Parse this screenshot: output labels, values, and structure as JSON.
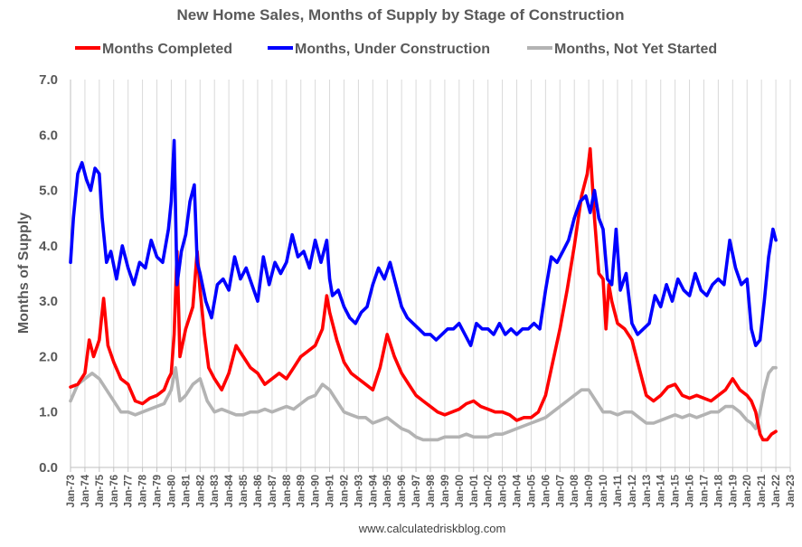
{
  "chart_data": {
    "type": "line",
    "title": "New Home Sales, Months of Supply by Stage of Construction",
    "ylabel": "Months of Supply",
    "xlabel": "",
    "ylim": [
      0,
      7
    ],
    "xlim": [
      1973,
      2023
    ],
    "grid": {
      "vertical": true,
      "horizontal": false
    },
    "legend_position": "top",
    "y_ticks": [
      "0.0",
      "1.0",
      "2.0",
      "3.0",
      "4.0",
      "5.0",
      "6.0",
      "7.0"
    ],
    "x_ticks": [
      "Jan-73",
      "Jan-74",
      "Jan-75",
      "Jan-76",
      "Jan-77",
      "Jan-78",
      "Jan-79",
      "Jan-80",
      "Jan-81",
      "Jan-82",
      "Jan-83",
      "Jan-84",
      "Jan-85",
      "Jan-86",
      "Jan-87",
      "Jan-88",
      "Jan-89",
      "Jan-90",
      "Jan-91",
      "Jan-92",
      "Jan-93",
      "Jan-94",
      "Jan-95",
      "Jan-96",
      "Jan-97",
      "Jan-98",
      "Jan-99",
      "Jan-00",
      "Jan-01",
      "Jan-02",
      "Jan-03",
      "Jan-04",
      "Jan-05",
      "Jan-06",
      "Jan-07",
      "Jan-08",
      "Jan-09",
      "Jan-10",
      "Jan-11",
      "Jan-12",
      "Jan-13",
      "Jan-14",
      "Jan-15",
      "Jan-16",
      "Jan-17",
      "Jan-18",
      "Jan-19",
      "Jan-20",
      "Jan-21",
      "Jan-22",
      "Jan-23"
    ],
    "series": [
      {
        "name": "Months Completed",
        "color": "#ff0000",
        "x": [
          1973.0,
          1973.5,
          1974.0,
          1974.3,
          1974.6,
          1975.0,
          1975.3,
          1975.6,
          1976.0,
          1976.5,
          1977.0,
          1977.5,
          1978.0,
          1978.5,
          1979.0,
          1979.5,
          1979.8,
          1980.0,
          1980.2,
          1980.4,
          1980.6,
          1981.0,
          1981.5,
          1981.8,
          1982.0,
          1982.3,
          1982.6,
          1983.0,
          1983.5,
          1984.0,
          1984.5,
          1985.0,
          1985.5,
          1986.0,
          1986.5,
          1987.0,
          1987.5,
          1988.0,
          1988.5,
          1989.0,
          1989.5,
          1990.0,
          1990.5,
          1990.8,
          1991.0,
          1991.5,
          1992.0,
          1992.5,
          1993.0,
          1993.5,
          1994.0,
          1994.5,
          1995.0,
          1995.5,
          1996.0,
          1996.5,
          1997.0,
          1997.5,
          1998.0,
          1998.5,
          1999.0,
          1999.5,
          2000.0,
          2000.5,
          2001.0,
          2001.5,
          2002.0,
          2002.5,
          2003.0,
          2003.5,
          2004.0,
          2004.5,
          2005.0,
          2005.5,
          2006.0,
          2006.5,
          2007.0,
          2007.5,
          2008.0,
          2008.5,
          2008.9,
          2009.1,
          2009.4,
          2009.7,
          2010.0,
          2010.2,
          2010.4,
          2010.6,
          2011.0,
          2011.5,
          2012.0,
          2012.5,
          2013.0,
          2013.5,
          2014.0,
          2014.5,
          2015.0,
          2015.5,
          2016.0,
          2016.5,
          2017.0,
          2017.5,
          2018.0,
          2018.5,
          2019.0,
          2019.5,
          2020.0,
          2020.3,
          2020.6,
          2020.9,
          2021.1,
          2021.4,
          2021.7,
          2022.0
        ],
        "values": [
          1.45,
          1.5,
          1.7,
          2.3,
          2.0,
          2.3,
          3.05,
          2.2,
          1.9,
          1.6,
          1.5,
          1.2,
          1.15,
          1.25,
          1.3,
          1.4,
          1.6,
          1.7,
          2.4,
          3.9,
          2.0,
          2.5,
          2.9,
          3.9,
          3.2,
          2.4,
          1.8,
          1.6,
          1.4,
          1.7,
          2.2,
          2.0,
          1.8,
          1.7,
          1.5,
          1.6,
          1.7,
          1.6,
          1.8,
          2.0,
          2.1,
          2.2,
          2.5,
          3.1,
          2.8,
          2.3,
          1.9,
          1.7,
          1.6,
          1.5,
          1.4,
          1.8,
          2.4,
          2.0,
          1.7,
          1.5,
          1.3,
          1.2,
          1.1,
          1.0,
          0.95,
          1.0,
          1.05,
          1.15,
          1.2,
          1.1,
          1.05,
          1.0,
          1.0,
          0.95,
          0.85,
          0.9,
          0.9,
          1.0,
          1.3,
          1.9,
          2.5,
          3.2,
          4.0,
          4.9,
          5.3,
          5.75,
          4.5,
          3.5,
          3.4,
          2.5,
          3.3,
          3.0,
          2.6,
          2.5,
          2.3,
          1.8,
          1.3,
          1.2,
          1.3,
          1.45,
          1.5,
          1.3,
          1.25,
          1.3,
          1.25,
          1.2,
          1.3,
          1.4,
          1.6,
          1.4,
          1.3,
          1.2,
          1.0,
          0.6,
          0.5,
          0.5,
          0.6,
          0.65
        ]
      },
      {
        "name": "Months, Under Construction",
        "color": "#0000ff",
        "x": [
          1973.0,
          1973.2,
          1973.5,
          1973.8,
          1974.1,
          1974.4,
          1974.7,
          1975.0,
          1975.2,
          1975.5,
          1975.8,
          1976.2,
          1976.6,
          1977.0,
          1977.4,
          1977.8,
          1978.2,
          1978.6,
          1979.0,
          1979.4,
          1979.8,
          1980.0,
          1980.2,
          1980.4,
          1980.7,
          1981.0,
          1981.3,
          1981.6,
          1981.8,
          1982.0,
          1982.4,
          1982.8,
          1983.2,
          1983.6,
          1984.0,
          1984.4,
          1984.8,
          1985.2,
          1985.6,
          1986.0,
          1986.4,
          1986.8,
          1987.2,
          1987.6,
          1988.0,
          1988.4,
          1988.8,
          1989.2,
          1989.6,
          1990.0,
          1990.4,
          1990.8,
          1991.0,
          1991.2,
          1991.6,
          1992.0,
          1992.4,
          1992.8,
          1993.2,
          1993.6,
          1994.0,
          1994.4,
          1994.8,
          1995.2,
          1995.6,
          1996.0,
          1996.4,
          1996.8,
          1997.2,
          1997.6,
          1998.0,
          1998.4,
          1998.8,
          1999.2,
          1999.6,
          2000.0,
          2000.4,
          2000.8,
          2001.2,
          2001.6,
          2002.0,
          2002.4,
          2002.8,
          2003.2,
          2003.6,
          2004.0,
          2004.4,
          2004.8,
          2005.2,
          2005.6,
          2006.0,
          2006.4,
          2006.8,
          2007.2,
          2007.6,
          2008.0,
          2008.4,
          2008.8,
          2009.1,
          2009.4,
          2009.7,
          2010.0,
          2010.3,
          2010.6,
          2010.9,
          2011.2,
          2011.6,
          2012.0,
          2012.4,
          2012.8,
          2013.2,
          2013.6,
          2014.0,
          2014.4,
          2014.8,
          2015.2,
          2015.6,
          2016.0,
          2016.4,
          2016.8,
          2017.2,
          2017.6,
          2018.0,
          2018.4,
          2018.8,
          2019.2,
          2019.6,
          2020.0,
          2020.3,
          2020.6,
          2020.9,
          2021.2,
          2021.5,
          2021.8,
          2022.0
        ],
        "values": [
          3.7,
          4.5,
          5.3,
          5.5,
          5.2,
          5.0,
          5.4,
          5.3,
          4.5,
          3.7,
          3.9,
          3.4,
          4.0,
          3.6,
          3.3,
          3.7,
          3.6,
          4.1,
          3.8,
          3.7,
          4.3,
          4.8,
          5.9,
          3.3,
          3.9,
          4.2,
          4.8,
          5.1,
          3.7,
          3.5,
          3.0,
          2.7,
          3.3,
          3.4,
          3.2,
          3.8,
          3.4,
          3.6,
          3.3,
          3.0,
          3.8,
          3.3,
          3.7,
          3.5,
          3.7,
          4.2,
          3.8,
          3.9,
          3.6,
          4.1,
          3.7,
          4.1,
          3.4,
          3.1,
          3.2,
          2.9,
          2.7,
          2.6,
          2.8,
          2.9,
          3.3,
          3.6,
          3.4,
          3.7,
          3.3,
          2.9,
          2.7,
          2.6,
          2.5,
          2.4,
          2.4,
          2.3,
          2.4,
          2.5,
          2.5,
          2.6,
          2.4,
          2.2,
          2.6,
          2.5,
          2.5,
          2.4,
          2.6,
          2.4,
          2.5,
          2.4,
          2.5,
          2.5,
          2.6,
          2.5,
          3.2,
          3.8,
          3.7,
          3.9,
          4.1,
          4.5,
          4.8,
          4.9,
          4.6,
          5.0,
          4.5,
          4.3,
          3.4,
          3.3,
          4.3,
          3.2,
          3.5,
          2.6,
          2.4,
          2.5,
          2.6,
          3.1,
          2.9,
          3.3,
          3.0,
          3.4,
          3.2,
          3.1,
          3.5,
          3.2,
          3.1,
          3.3,
          3.4,
          3.3,
          4.1,
          3.6,
          3.3,
          3.4,
          2.5,
          2.2,
          2.3,
          3.0,
          3.8,
          4.3,
          4.1
        ]
      },
      {
        "name": "Months, Not Yet Started",
        "color": "#b3b3b3",
        "x": [
          1973.0,
          1973.5,
          1974.0,
          1974.5,
          1975.0,
          1975.5,
          1976.0,
          1976.5,
          1977.0,
          1977.5,
          1978.0,
          1978.5,
          1979.0,
          1979.5,
          1980.0,
          1980.3,
          1980.6,
          1981.0,
          1981.5,
          1982.0,
          1982.5,
          1983.0,
          1983.5,
          1984.0,
          1984.5,
          1985.0,
          1985.5,
          1986.0,
          1986.5,
          1987.0,
          1987.5,
          1988.0,
          1988.5,
          1989.0,
          1989.5,
          1990.0,
          1990.5,
          1991.0,
          1991.5,
          1992.0,
          1992.5,
          1993.0,
          1993.5,
          1994.0,
          1994.5,
          1995.0,
          1995.5,
          1996.0,
          1996.5,
          1997.0,
          1997.5,
          1998.0,
          1998.5,
          1999.0,
          1999.5,
          2000.0,
          2000.5,
          2001.0,
          2001.5,
          2002.0,
          2002.5,
          2003.0,
          2003.5,
          2004.0,
          2004.5,
          2005.0,
          2005.5,
          2006.0,
          2006.5,
          2007.0,
          2007.5,
          2008.0,
          2008.5,
          2009.0,
          2009.5,
          2010.0,
          2010.5,
          2011.0,
          2011.5,
          2012.0,
          2012.5,
          2013.0,
          2013.5,
          2014.0,
          2014.5,
          2015.0,
          2015.5,
          2016.0,
          2016.5,
          2017.0,
          2017.5,
          2018.0,
          2018.5,
          2019.0,
          2019.5,
          2020.0,
          2020.3,
          2020.6,
          2020.9,
          2021.2,
          2021.5,
          2021.8,
          2022.0
        ],
        "values": [
          1.2,
          1.5,
          1.6,
          1.7,
          1.6,
          1.4,
          1.2,
          1.0,
          1.0,
          0.95,
          1.0,
          1.05,
          1.1,
          1.15,
          1.4,
          1.8,
          1.2,
          1.3,
          1.5,
          1.6,
          1.2,
          1.0,
          1.05,
          1.0,
          0.95,
          0.95,
          1.0,
          1.0,
          1.05,
          1.0,
          1.05,
          1.1,
          1.05,
          1.15,
          1.25,
          1.3,
          1.5,
          1.4,
          1.2,
          1.0,
          0.95,
          0.9,
          0.9,
          0.8,
          0.85,
          0.9,
          0.8,
          0.7,
          0.65,
          0.55,
          0.5,
          0.5,
          0.5,
          0.55,
          0.55,
          0.55,
          0.6,
          0.55,
          0.55,
          0.55,
          0.6,
          0.6,
          0.65,
          0.7,
          0.75,
          0.8,
          0.85,
          0.9,
          1.0,
          1.1,
          1.2,
          1.3,
          1.4,
          1.4,
          1.2,
          1.0,
          1.0,
          0.95,
          1.0,
          1.0,
          0.9,
          0.8,
          0.8,
          0.85,
          0.9,
          0.95,
          0.9,
          0.95,
          0.9,
          0.95,
          1.0,
          1.0,
          1.1,
          1.1,
          1.0,
          0.85,
          0.8,
          0.7,
          1.0,
          1.4,
          1.7,
          1.8,
          1.8
        ]
      }
    ],
    "footer": "www.calculatedriskblog.com"
  }
}
